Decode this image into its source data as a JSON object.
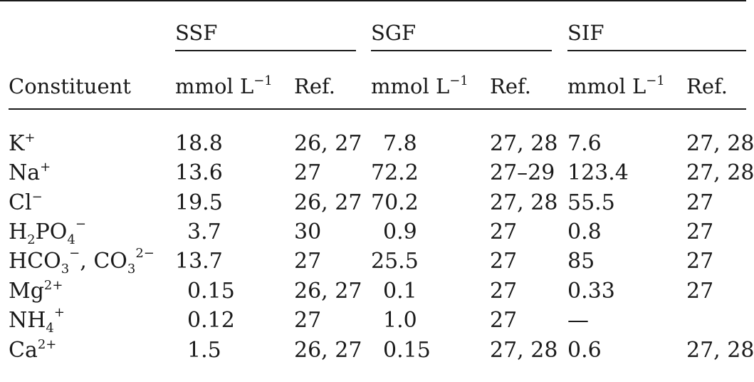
{
  "table": {
    "groups": [
      {
        "label": "SSF"
      },
      {
        "label": "SGF"
      },
      {
        "label": "SIF"
      }
    ],
    "header": {
      "constituent": "Constituent",
      "unit_base": "mmol L",
      "unit_exp": "−1",
      "ref": "Ref."
    },
    "rows": [
      {
        "name": "K",
        "sup": "+",
        "ssf": "18.8",
        "ssf_ref": "26, 27",
        "sgf": "7.8",
        "sgf_ref": "27, 28",
        "sif": "7.6",
        "sif_ref": "27, 28"
      },
      {
        "name": "Na",
        "sup": "+",
        "ssf": "13.6",
        "ssf_ref": "27",
        "sgf": "72.2",
        "sgf_ref": "27–29",
        "sif": "123.4",
        "sif_ref": "27, 28"
      },
      {
        "name": "Cl",
        "sup": "−",
        "ssf": "19.5",
        "ssf_ref": "26, 27",
        "sgf": "70.2",
        "sgf_ref": "27, 28",
        "sif": "55.5",
        "sif_ref": "27"
      },
      {
        "name_a": "H",
        "sub_a": "2",
        "name_b": "PO",
        "sub_b": "4",
        "sup": "−",
        "ssf": "3.7",
        "ssf_ref": "30",
        "sgf": "0.9",
        "sgf_ref": "27",
        "sif": "0.8",
        "sif_ref": "27"
      },
      {
        "name_a": "HCO",
        "sub_a": "3",
        "sup_a": "−",
        "sep": ", ",
        "name_b": "CO",
        "sub_b": "3",
        "sup_b": "2−",
        "ssf": "13.7",
        "ssf_ref": "27",
        "sgf": "25.5",
        "sgf_ref": "27",
        "sif": "85",
        "sif_ref": "27"
      },
      {
        "name": "Mg",
        "sup": "2+",
        "ssf": "0.15",
        "ssf_ref": "26, 27",
        "sgf": "0.1",
        "sgf_ref": "27",
        "sif": "0.33",
        "sif_ref": "27"
      },
      {
        "name": "NH",
        "sub": "4",
        "sup": "+",
        "ssf": "0.12",
        "ssf_ref": "27",
        "sgf": "1.0",
        "sgf_ref": "27",
        "sif": "—",
        "sif_ref": ""
      },
      {
        "name": "Ca",
        "sup": "2+",
        "ssf": "1.5",
        "ssf_ref": "26, 27",
        "sgf": "0.15",
        "sgf_ref": "27, 28",
        "sif": "0.6",
        "sif_ref": "27, 28"
      }
    ]
  }
}
